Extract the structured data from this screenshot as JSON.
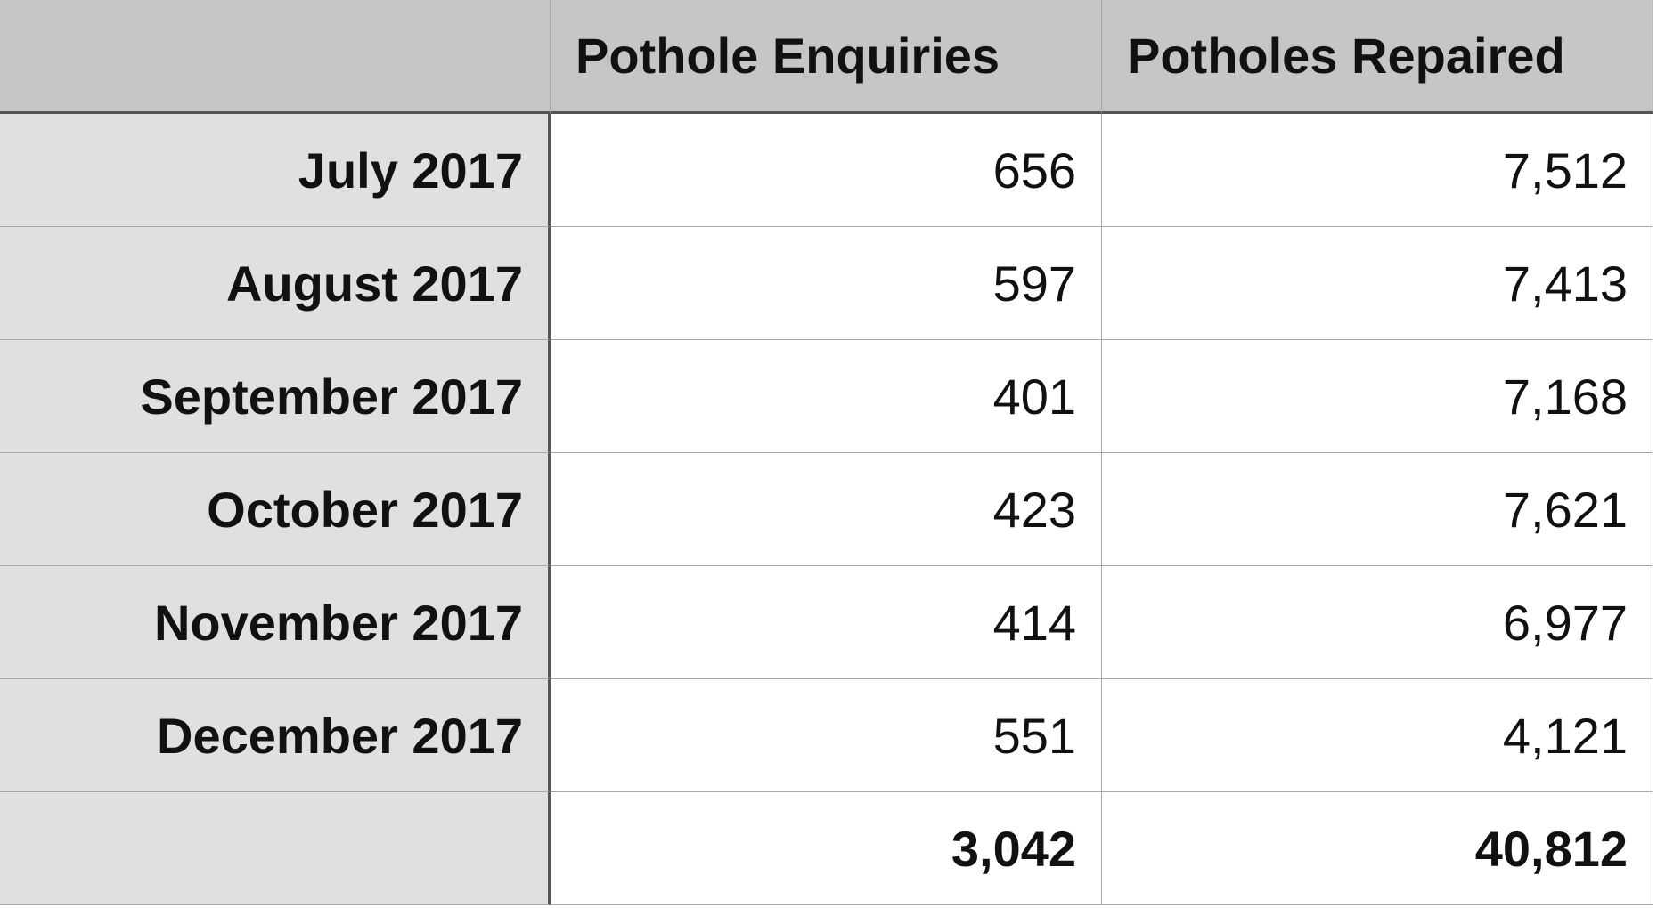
{
  "table": {
    "columns": [
      "Pothole Enquiries",
      "Potholes Repaired"
    ],
    "rows": [
      [
        "July 2017",
        "656",
        "7,512"
      ],
      [
        "August 2017",
        "597",
        "7,413"
      ],
      [
        "September 2017",
        "401",
        "7,168"
      ],
      [
        "October 2017",
        "423",
        "7,621"
      ],
      [
        "November 2017",
        "414",
        "6,977"
      ],
      [
        "December 2017",
        "551",
        "4,121"
      ]
    ],
    "totals": [
      "3,042",
      "40,812"
    ]
  }
}
